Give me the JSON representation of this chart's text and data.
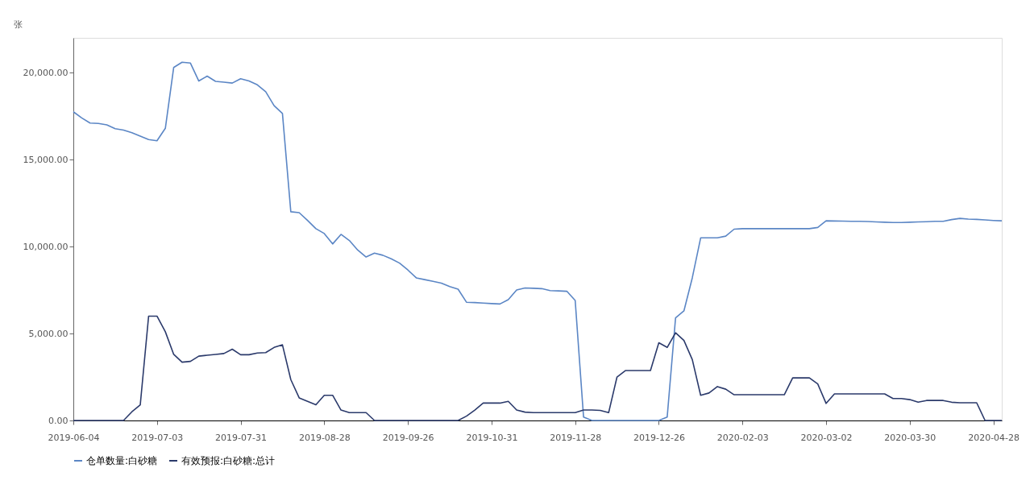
{
  "chart_data": {
    "type": "line",
    "ylabel": "张",
    "categories": [
      "2019-06-04",
      null,
      null,
      null,
      null,
      null,
      null,
      null,
      null,
      null,
      "2019-07-03",
      null,
      null,
      null,
      null,
      null,
      null,
      null,
      null,
      null,
      "2019-07-31",
      null,
      null,
      null,
      null,
      null,
      null,
      null,
      null,
      null,
      "2019-08-28",
      null,
      null,
      null,
      null,
      null,
      null,
      null,
      null,
      null,
      "2019-09-26",
      null,
      null,
      null,
      null,
      null,
      null,
      null,
      null,
      null,
      "2019-10-31",
      null,
      null,
      null,
      null,
      null,
      null,
      null,
      null,
      null,
      "2019-11-28",
      null,
      null,
      null,
      null,
      null,
      null,
      null,
      null,
      null,
      "2019-12-26",
      null,
      null,
      null,
      null,
      null,
      null,
      null,
      null,
      null,
      "2020-02-03",
      null,
      null,
      null,
      null,
      null,
      null,
      null,
      null,
      null,
      "2020-03-02",
      null,
      null,
      null,
      null,
      null,
      null,
      null,
      null,
      null,
      "2020-03-30",
      null,
      null,
      null,
      null,
      null,
      null,
      null,
      null,
      null,
      "2020-04-28",
      null
    ],
    "series": [
      {
        "name": "仓单数量:白砂糖",
        "color": "#5b86c5",
        "values": [
          17750,
          17400,
          17100,
          17080,
          17000,
          16780,
          16700,
          16550,
          16350,
          16150,
          16080,
          16800,
          20300,
          20600,
          20550,
          19520,
          19800,
          19500,
          19450,
          19400,
          19650,
          19520,
          19300,
          18900,
          18100,
          17650,
          12000,
          11950,
          11500,
          11030,
          10750,
          10150,
          10700,
          10350,
          9800,
          9400,
          9620,
          9500,
          9300,
          9050,
          8650,
          8200,
          8100,
          8000,
          7900,
          7700,
          7550,
          6800,
          6780,
          6750,
          6720,
          6700,
          6950,
          7500,
          7620,
          7600,
          7580,
          7470,
          7450,
          7430,
          6900,
          200,
          0,
          0,
          0,
          0,
          0,
          0,
          0,
          0,
          0,
          200,
          5900,
          6300,
          8200,
          10500,
          10500,
          10500,
          10600,
          11000,
          11030,
          11030,
          11030,
          11030,
          11030,
          11030,
          11030,
          11030,
          11030,
          11100,
          11480,
          11470,
          11460,
          11450,
          11450,
          11440,
          11420,
          11400,
          11380,
          11380,
          11400,
          11420,
          11430,
          11450,
          11450,
          11550,
          11620,
          11580,
          11560,
          11530,
          11500,
          11480
        ]
      },
      {
        "name": "有效预报:白砂糖:总计",
        "color": "#2b3a6b",
        "values": [
          0,
          0,
          0,
          0,
          0,
          0,
          0,
          500,
          900,
          6000,
          6000,
          5100,
          3800,
          3350,
          3400,
          3700,
          3750,
          3800,
          3850,
          4100,
          3780,
          3780,
          3880,
          3900,
          4200,
          4350,
          2350,
          1300,
          1100,
          900,
          1450,
          1450,
          600,
          450,
          450,
          450,
          0,
          0,
          0,
          0,
          0,
          0,
          0,
          0,
          0,
          0,
          0,
          250,
          600,
          1000,
          1000,
          1000,
          1100,
          600,
          480,
          450,
          450,
          450,
          450,
          450,
          450,
          600,
          600,
          580,
          450,
          2500,
          2870,
          2870,
          2870,
          2870,
          4470,
          4200,
          5040,
          4600,
          3500,
          1450,
          1580,
          1950,
          1800,
          1480,
          1480,
          1480,
          1480,
          1480,
          1480,
          1480,
          2450,
          2450,
          2450,
          2100,
          980,
          1530,
          1530,
          1530,
          1530,
          1530,
          1530,
          1530,
          1260,
          1260,
          1200,
          1050,
          1150,
          1150,
          1150,
          1050,
          1020,
          1020,
          1020,
          0,
          0,
          0
        ]
      }
    ],
    "ylim": [
      0,
      22000
    ],
    "yticks": [
      {
        "value": 0,
        "label": "0.00"
      },
      {
        "value": 5000,
        "label": "5,000.00"
      },
      {
        "value": 10000,
        "label": "10,000.00"
      },
      {
        "value": 15000,
        "label": "15,000.00"
      },
      {
        "value": 20000,
        "label": "20,000.00"
      }
    ],
    "grid": false,
    "legend": "bottom",
    "marker": "none",
    "line_style": "solid"
  }
}
